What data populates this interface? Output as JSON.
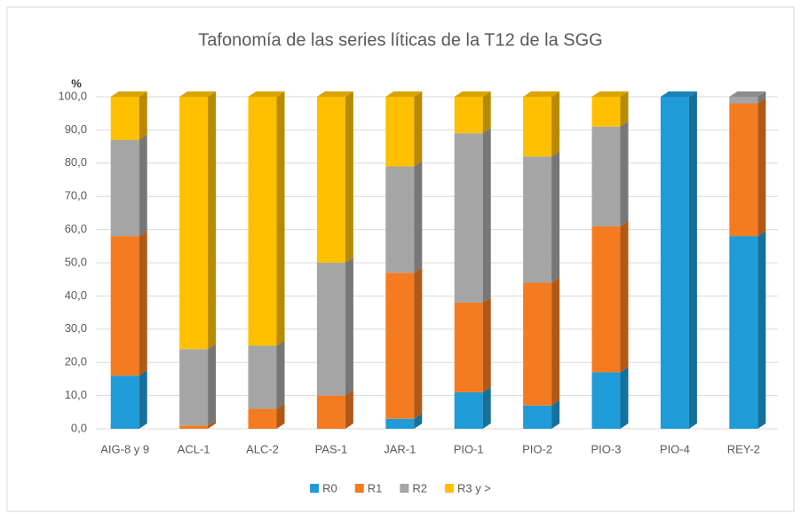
{
  "chart_data": {
    "type": "stacked-bar-3d",
    "title": "Tafonomía de las series líticas de la T12 de la SGG",
    "y_label": "%",
    "categories": [
      "AIG-8 y 9",
      "ACL-1",
      "ALC-2",
      "PAS-1",
      "JAR-1",
      "PIO-1",
      "PIO-2",
      "PIO-3",
      "PIO-4",
      "REY-2"
    ],
    "series": [
      {
        "name": "R0",
        "color": "#1f9bd7",
        "values": [
          16,
          0,
          0,
          0,
          3,
          11,
          7,
          17,
          100,
          58
        ]
      },
      {
        "name": "R1",
        "color": "#f47b20",
        "values": [
          42,
          1,
          6,
          10,
          44,
          27,
          37,
          44,
          0,
          40
        ]
      },
      {
        "name": "R2",
        "color": "#a5a5a5",
        "values": [
          29,
          23,
          19,
          40,
          32,
          51,
          38,
          30,
          0,
          2
        ]
      },
      {
        "name": "R3 y >",
        "color": "#ffc000",
        "values": [
          13,
          76,
          75,
          50,
          21,
          11,
          18,
          9,
          0,
          0
        ]
      }
    ],
    "ylim": [
      0,
      100
    ],
    "yticks": [
      {
        "value": 0,
        "label": "0,0"
      },
      {
        "value": 10,
        "label": "10,0"
      },
      {
        "value": 20,
        "label": "20,0"
      },
      {
        "value": 30,
        "label": "30,0"
      },
      {
        "value": 40,
        "label": "40,0"
      },
      {
        "value": 50,
        "label": "50,0"
      },
      {
        "value": 60,
        "label": "60,0"
      },
      {
        "value": 70,
        "label": "70,0"
      },
      {
        "value": 80,
        "label": "80,0"
      },
      {
        "value": 90,
        "label": "90,0"
      },
      {
        "value": 100,
        "label": "100,0"
      }
    ],
    "grid": true,
    "legend": "bottom"
  }
}
